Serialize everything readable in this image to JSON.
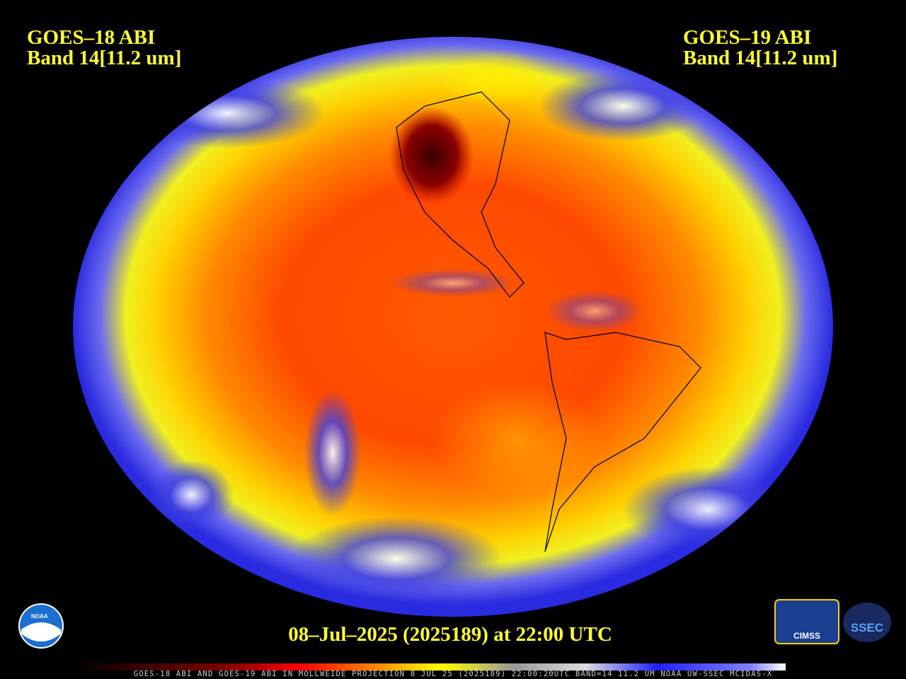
{
  "header": {
    "left": {
      "satellite": "GOES–18 ABI",
      "band": "Band 14[11.2 um]"
    },
    "right": {
      "satellite": "GOES–19 ABI",
      "band": "Band 14[11.2 um]"
    }
  },
  "timestamp": "08–Jul–2025 (2025189) at 22:00 UTC",
  "footer": "GOES-18 ABI AND GOES-19 ABI IN MOLLWEIDE PROJECTION 8 JUL 25 (2025189) 22:00:20UTC BAND=14 11.2 UM NOAA UW-SSEC MCIDAS-X",
  "logos": {
    "noaa": "NOAA",
    "cimss": "CIMSS",
    "ssec": "SSEC"
  }
}
